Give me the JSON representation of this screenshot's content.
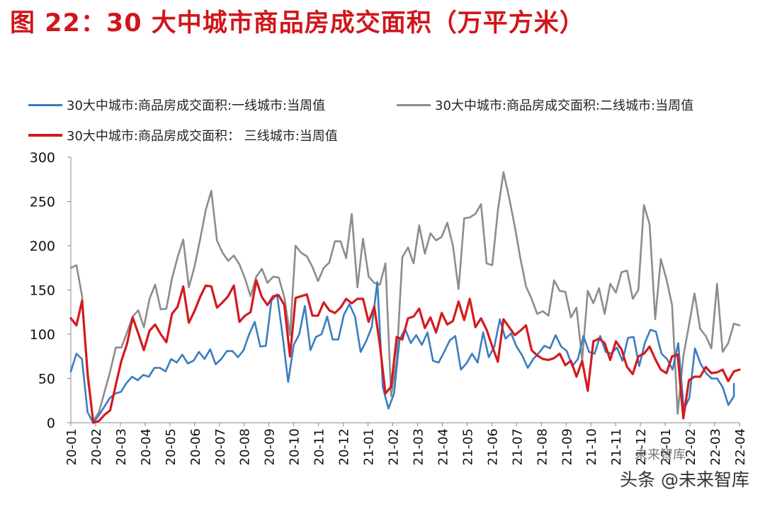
{
  "title": "图 22：30 大中城市商品房成交面积（万平方米）",
  "watermark": "头条 @未来智库",
  "watermark_logo": "未来智库",
  "chart_data": {
    "type": "line",
    "ylim": [
      0,
      300
    ],
    "yticks": [
      0,
      50,
      100,
      150,
      200,
      250,
      300
    ],
    "x_tick_labels": [
      "20-01",
      "20-02",
      "20-03",
      "20-04",
      "20-05",
      "20-06",
      "20-07",
      "20-08",
      "20-09",
      "20-10",
      "20-11",
      "20-12",
      "21-01",
      "21-02",
      "21-03",
      "21-04",
      "21-05",
      "21-06",
      "21-07",
      "21-08",
      "21-09",
      "21-10",
      "21-11",
      "21-12",
      "22-01",
      "22-02",
      "22-03",
      "22-04"
    ],
    "n_points": 120,
    "grid": false,
    "legend": "top",
    "series": [
      {
        "name": "30大中城市:商品房成交面积:一线城市:当周值",
        "color": "#3a7dbf",
        "values": [
          58,
          78,
          72,
          12,
          0,
          8,
          18,
          28,
          33,
          35,
          45,
          52,
          48,
          54,
          52,
          62,
          62,
          58,
          72,
          68,
          77,
          67,
          70,
          80,
          72,
          83,
          66,
          72,
          81,
          81,
          74,
          82,
          100,
          114,
          86,
          87,
          138,
          145,
          99,
          46,
          88,
          100,
          132,
          82,
          97,
          100,
          120,
          94,
          94,
          122,
          134,
          120,
          80,
          92,
          108,
          159,
          40,
          16,
          33,
          94,
          106,
          90,
          99,
          88,
          102,
          70,
          68,
          80,
          93,
          98,
          60,
          67,
          78,
          68,
          102,
          74,
          86,
          117,
          95,
          101,
          86,
          76,
          62,
          72,
          79,
          87,
          84,
          99,
          86,
          81,
          64,
          72,
          98,
          80,
          78,
          98,
          80,
          78,
          85,
          70,
          96,
          97,
          64,
          90,
          105,
          103,
          78,
          72,
          60,
          90,
          15,
          28,
          84,
          67,
          56,
          50,
          50,
          40,
          20,
          30
        ],
        "values_tail": [
          44
        ]
      },
      {
        "name": "30大中城市:商品房成交面积:二线城市:当周值",
        "color": "#8c8c8c",
        "values": [
          175,
          178,
          143,
          50,
          2,
          12,
          35,
          58,
          85,
          85,
          102,
          120,
          127,
          108,
          140,
          156,
          128,
          129,
          163,
          187,
          207,
          153,
          176,
          207,
          240,
          262,
          206,
          192,
          183,
          189,
          179,
          163,
          143,
          165,
          174,
          158,
          165,
          164,
          142,
          99,
          200,
          192,
          188,
          176,
          160,
          175,
          181,
          205,
          205,
          186,
          236,
          153,
          208,
          165,
          158,
          156,
          180,
          30,
          72,
          187,
          198,
          180,
          223,
          191,
          214,
          206,
          210,
          226,
          200,
          151,
          231,
          232,
          236,
          247,
          180,
          178,
          240,
          283,
          254,
          222,
          186,
          154,
          140,
          123,
          126,
          121,
          161,
          149,
          148,
          119,
          130,
          71,
          149,
          135,
          152,
          123,
          157,
          147,
          170,
          172,
          140,
          150,
          246,
          224,
          117,
          185,
          162,
          133,
          10,
          75,
          110,
          146,
          106,
          98,
          84,
          157,
          80,
          90,
          112,
          110
        ],
        "values_tail": []
      },
      {
        "name": "30大中城市:商品房成交面积： 三线城市:当周值",
        "color": "#d41a1f",
        "values": [
          118,
          110,
          138,
          55,
          0,
          2,
          9,
          14,
          43,
          70,
          89,
          119,
          101,
          82,
          104,
          111,
          100,
          91,
          123,
          131,
          154,
          113,
          126,
          142,
          155,
          154,
          130,
          136,
          143,
          155,
          114,
          121,
          125,
          161,
          142,
          133,
          143,
          144,
          133,
          75,
          141,
          143,
          145,
          121,
          121,
          136,
          127,
          124,
          130,
          140,
          135,
          140,
          140,
          114,
          131,
          88,
          33,
          41,
          97,
          94,
          118,
          120,
          129,
          107,
          119,
          102,
          124,
          111,
          115,
          137,
          116,
          140,
          108,
          118,
          105,
          86,
          69,
          117,
          108,
          99,
          104,
          110,
          82,
          76,
          72,
          71,
          73,
          78,
          65,
          70,
          52,
          70,
          36,
          92,
          95,
          90,
          71,
          92,
          83,
          63,
          55,
          75,
          78,
          86,
          72,
          60,
          56,
          75,
          77,
          5,
          48,
          52,
          52,
          63,
          56,
          57,
          60,
          47,
          58,
          60
        ],
        "values_tail": []
      }
    ]
  }
}
